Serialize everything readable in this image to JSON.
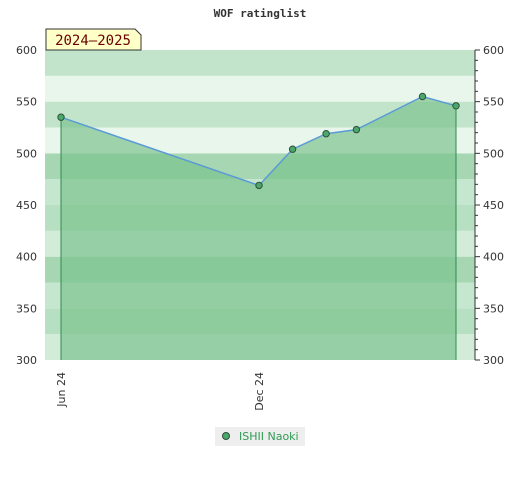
{
  "chart_data": {
    "type": "area",
    "title": "WOF ratinglist",
    "season_label": "2024–2025",
    "ylim": [
      300,
      600
    ],
    "yticks": [
      300,
      350,
      400,
      450,
      500,
      550,
      600
    ],
    "ytick_labels": [
      "300",
      "350",
      "400",
      "450",
      "500",
      "550",
      "600"
    ],
    "xlim": [
      "2024-06-01",
      "2025-06-30"
    ],
    "xticks": [
      {
        "date": "2024-06-01",
        "label": "Jun 24"
      },
      {
        "date": "2024-12-01",
        "label": "Dec 24"
      }
    ],
    "series": [
      {
        "name": "ISHII Naoki",
        "points": [
          {
            "x": "2024-06-01",
            "y": 535
          },
          {
            "x": "2024-12-01",
            "y": 469
          },
          {
            "x": "2025-01-01",
            "y": 504
          },
          {
            "x": "2025-02-01",
            "y": 519
          },
          {
            "x": "2025-03-01",
            "y": 523
          },
          {
            "x": "2025-05-01",
            "y": 555
          },
          {
            "x": "2025-06-01",
            "y": 546
          }
        ]
      }
    ],
    "legend_position": "bottom-center",
    "grid": true,
    "colors": {
      "line": "#5b9bd5",
      "fill": "#7cc38f",
      "marker": "#4aa86a",
      "band_dark": "#a9d8b5",
      "band_light": "#e4f3e8",
      "legend_bg": "#eeeeee",
      "season_bg": "#ffffc8"
    }
  }
}
